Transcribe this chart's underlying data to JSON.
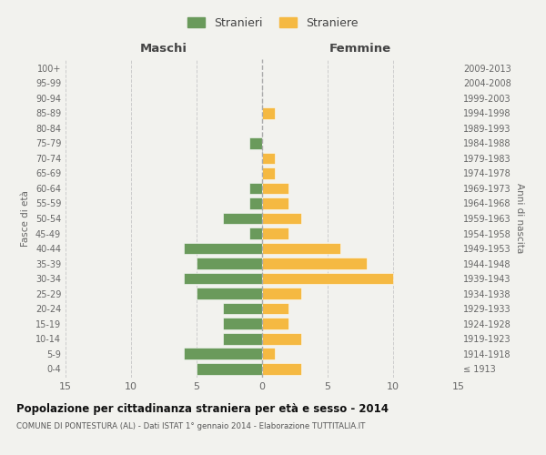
{
  "age_groups": [
    "100+",
    "95-99",
    "90-94",
    "85-89",
    "80-84",
    "75-79",
    "70-74",
    "65-69",
    "60-64",
    "55-59",
    "50-54",
    "45-49",
    "40-44",
    "35-39",
    "30-34",
    "25-29",
    "20-24",
    "15-19",
    "10-14",
    "5-9",
    "0-4"
  ],
  "birth_years": [
    "≤ 1913",
    "1914-1918",
    "1919-1923",
    "1924-1928",
    "1929-1933",
    "1934-1938",
    "1939-1943",
    "1944-1948",
    "1949-1953",
    "1954-1958",
    "1959-1963",
    "1964-1968",
    "1969-1973",
    "1974-1978",
    "1979-1983",
    "1984-1988",
    "1989-1993",
    "1994-1998",
    "1999-2003",
    "2004-2008",
    "2009-2013"
  ],
  "maschi": [
    0,
    0,
    0,
    0,
    0,
    1,
    0,
    0,
    1,
    1,
    3,
    1,
    6,
    5,
    6,
    5,
    3,
    3,
    3,
    6,
    5
  ],
  "femmine": [
    0,
    0,
    0,
    1,
    0,
    0,
    1,
    1,
    2,
    2,
    3,
    2,
    6,
    8,
    10,
    3,
    2,
    2,
    3,
    1,
    3
  ],
  "color_maschi": "#6a9a5b",
  "color_femmine": "#f5b942",
  "title": "Popolazione per cittadinanza straniera per età e sesso - 2014",
  "subtitle": "COMUNE DI PONTESTURA (AL) - Dati ISTAT 1° gennaio 2014 - Elaborazione TUTTITALIA.IT",
  "xlabel_maschi": "Maschi",
  "xlabel_femmine": "Femmine",
  "ylabel": "Fasce di età",
  "ylabel_right": "Anni di nascita",
  "legend_maschi": "Stranieri",
  "legend_femmine": "Straniere",
  "xlim": 15,
  "background_color": "#f2f2ee",
  "grid_color": "#cccccc",
  "bar_height": 0.78
}
